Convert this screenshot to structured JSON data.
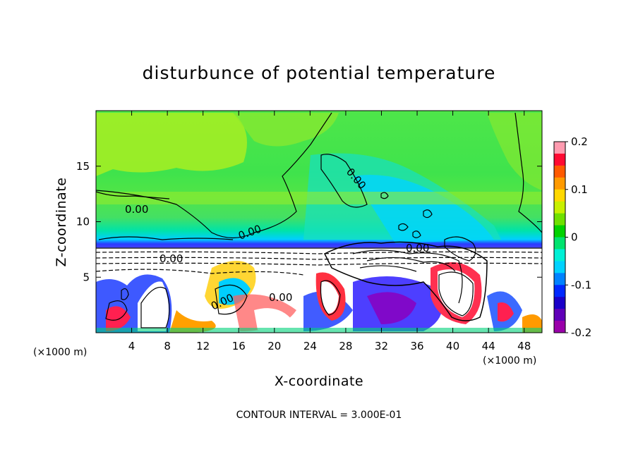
{
  "chart_data": {
    "type": "heatmap",
    "title": "disturbunce of potential temperature",
    "xlabel": "X-coordinate",
    "ylabel": "Z-coordinate",
    "x_unit": "(×1000 m)",
    "x_unit_right": "(×1000 m)",
    "xlim": [
      0,
      50
    ],
    "ylim": [
      0,
      20
    ],
    "xticks": [
      "4",
      "8",
      "12",
      "16",
      "20",
      "24",
      "28",
      "32",
      "36",
      "40",
      "44",
      "48"
    ],
    "yticks": [
      "5",
      "10",
      "15"
    ],
    "colorbar": {
      "range": [
        -0.2,
        0.2
      ],
      "ticks": [
        "0.2",
        "0.1",
        "0",
        "-0.1",
        "-0.2"
      ],
      "colors": [
        "#ff9bb0",
        "#ff0a32",
        "#ff5a00",
        "#ff9a00",
        "#ffd800",
        "#c8f000",
        "#6fe000",
        "#00d200",
        "#00e36e",
        "#00f0d6",
        "#00d2ff",
        "#0082ff",
        "#0028ff",
        "#1a00c8",
        "#6000b8",
        "#9a00aa"
      ]
    },
    "contour_labels": [
      "0.00",
      "0.00",
      "0.00",
      "0.00",
      "0.00",
      "0.00",
      "0.00"
    ],
    "footer": "CONTOUR INTERVAL = 3.000E-01",
    "grid": false
  },
  "colors": {
    "green_bg": "#66e63c",
    "upper_green": "#a6ee1e",
    "cyan_band": "#00e8e8",
    "blue_band": "#0064ff",
    "lower_white": "#ffffff"
  }
}
